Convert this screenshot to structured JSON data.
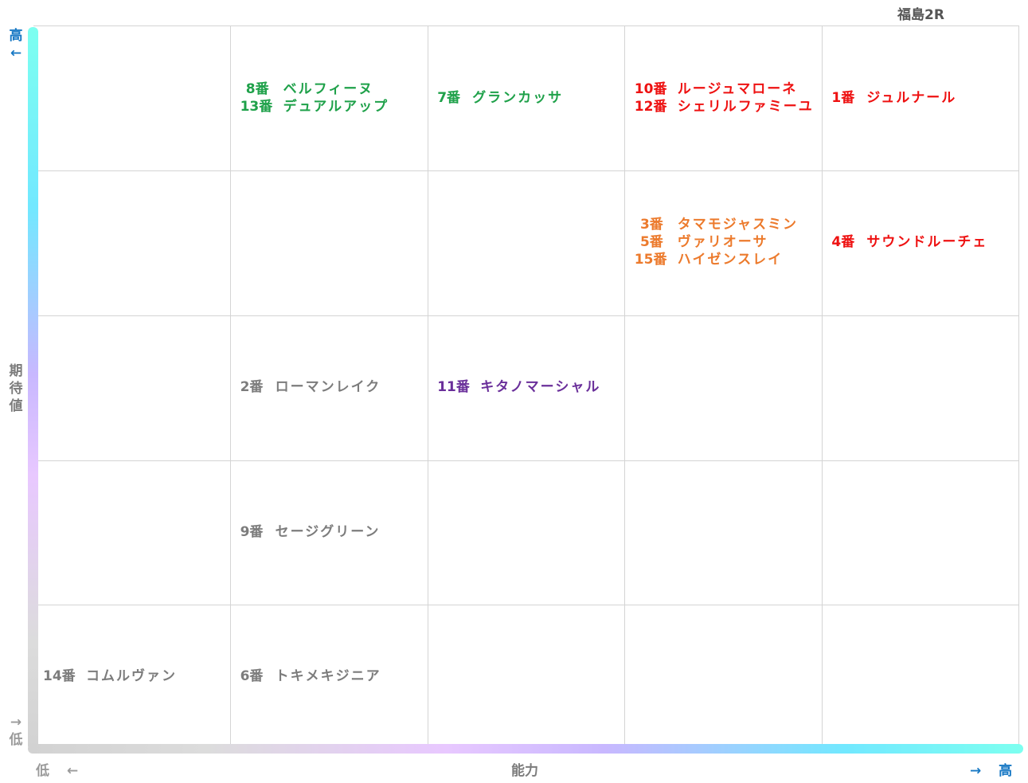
{
  "title": "福島2R",
  "chart_data": {
    "type": "table",
    "x_axis": {
      "label": "能力",
      "low_label": "低",
      "low_arrow": "←",
      "high_label": "高",
      "high_arrow": "→"
    },
    "y_axis": {
      "label": "期待値",
      "low_label": "低",
      "low_arrow": "→",
      "high_label": "高",
      "high_arrow": "←"
    },
    "columns": 5,
    "rows": 5,
    "colors": {
      "green": "#1fa14a",
      "red": "#ee1111",
      "orange": "#ec7a2c",
      "purple": "#6a2f9a",
      "gray": "#7c7c7c",
      "axis_blue": "#1778c4",
      "axis_gray": "#9a9a9a",
      "grid": "#d4d4d4"
    },
    "cells": [
      {
        "ability_col": 2,
        "value_row": 5,
        "color": "#1fa14a",
        "entries": [
          {
            "num": "8番",
            "name": "ベルフィーヌ"
          },
          {
            "num": "13番",
            "name": "デュアルアップ"
          }
        ]
      },
      {
        "ability_col": 3,
        "value_row": 5,
        "color": "#1fa14a",
        "entries": [
          {
            "num": "7番",
            "name": "グランカッサ"
          }
        ]
      },
      {
        "ability_col": 4,
        "value_row": 5,
        "color": "#ee1111",
        "entries": [
          {
            "num": "10番",
            "name": "ルージュマローネ"
          },
          {
            "num": "12番",
            "name": "シェリルファミーユ"
          }
        ]
      },
      {
        "ability_col": 5,
        "value_row": 5,
        "color": "#ee1111",
        "entries": [
          {
            "num": "1番",
            "name": "ジュルナール"
          }
        ]
      },
      {
        "ability_col": 4,
        "value_row": 4,
        "color": "#ec7a2c",
        "entries": [
          {
            "num": "3番",
            "name": "タマモジャスミン"
          },
          {
            "num": "5番",
            "name": "ヴァリオーサ"
          },
          {
            "num": "15番",
            "name": "ハイゼンスレイ"
          }
        ]
      },
      {
        "ability_col": 5,
        "value_row": 4,
        "color": "#ee1111",
        "entries": [
          {
            "num": "4番",
            "name": "サウンドルーチェ"
          }
        ]
      },
      {
        "ability_col": 2,
        "value_row": 3,
        "color": "#7c7c7c",
        "entries": [
          {
            "num": "2番",
            "name": "ローマンレイク"
          }
        ]
      },
      {
        "ability_col": 3,
        "value_row": 3,
        "color": "#6a2f9a",
        "entries": [
          {
            "num": "11番",
            "name": "キタノマーシャル"
          }
        ]
      },
      {
        "ability_col": 2,
        "value_row": 2,
        "color": "#7c7c7c",
        "entries": [
          {
            "num": "9番",
            "name": "セージグリーン"
          }
        ]
      },
      {
        "ability_col": 1,
        "value_row": 1,
        "color": "#7c7c7c",
        "entries": [
          {
            "num": "14番",
            "name": "コムルヴァン"
          }
        ]
      },
      {
        "ability_col": 2,
        "value_row": 1,
        "color": "#7c7c7c",
        "entries": [
          {
            "num": "6番",
            "name": "トキメキジニア"
          }
        ]
      }
    ]
  }
}
